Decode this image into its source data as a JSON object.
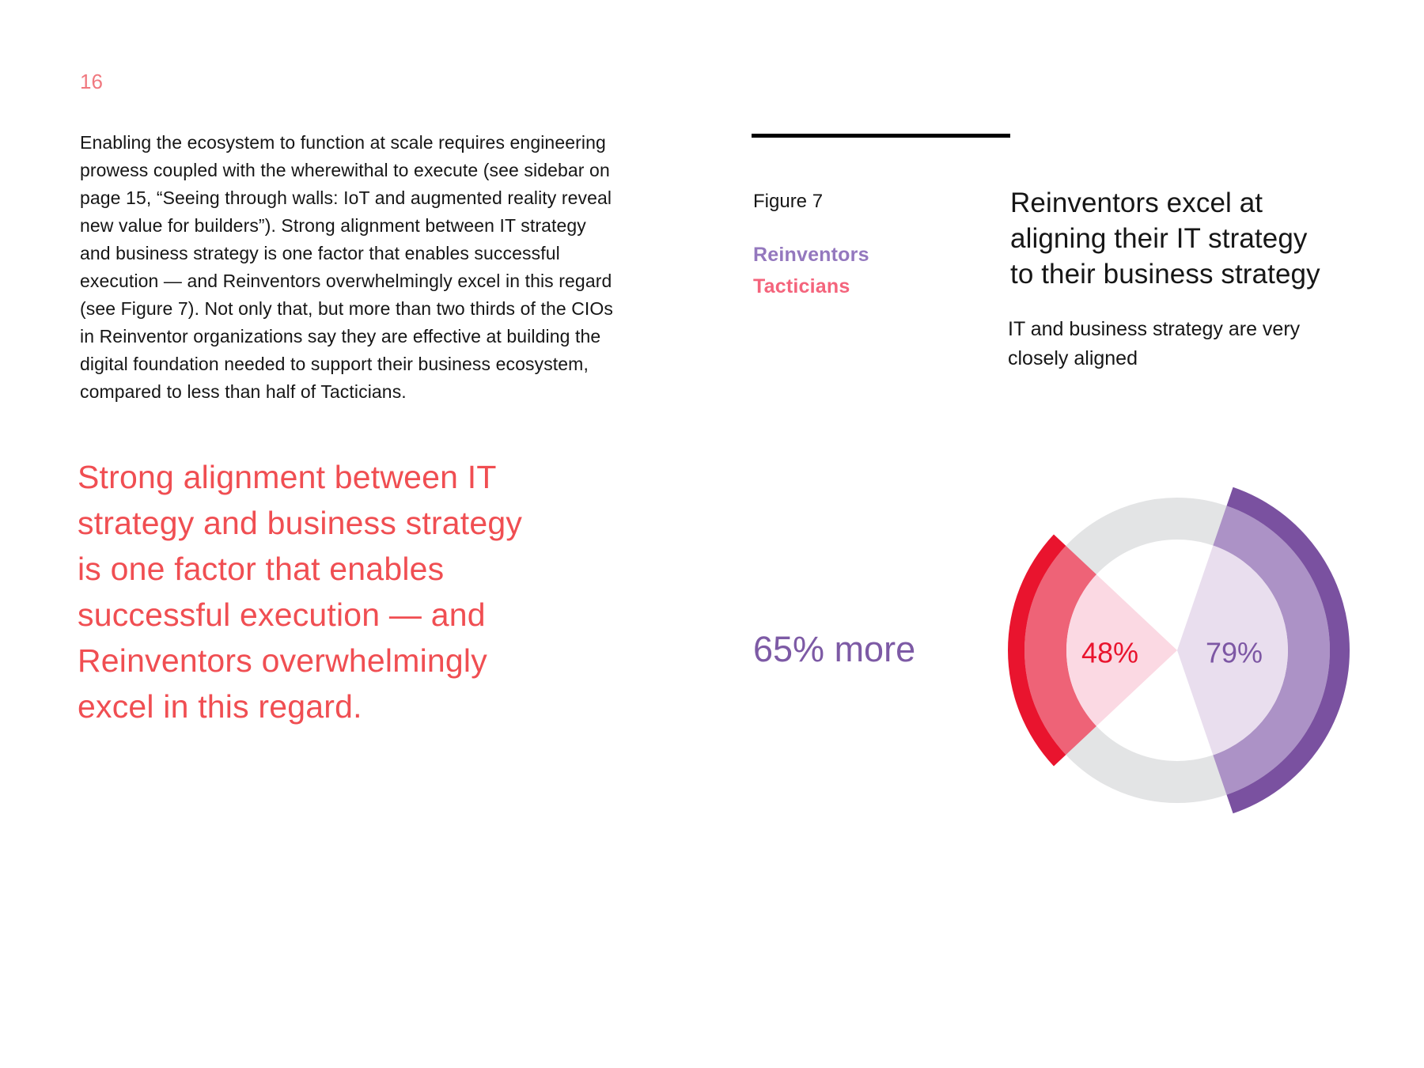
{
  "page": {
    "number": "16"
  },
  "colors": {
    "accent_red": "#F04E52",
    "page_number_red": "#F0787F",
    "text_black": "#161616",
    "rule_black": "#000000",
    "legend_purple": "#9478BE",
    "legend_pink": "#F4647C",
    "annotation_purple": "#7D5AA5"
  },
  "left_column": {
    "paragraph_lines": [
      "Enabling the ecosystem to function at scale requires engineering",
      "prowess coupled with the wherewithal to execute (see sidebar on",
      "page 15, “Seeing through walls: IoT and augmented reality reveal",
      "new value for builders”). Strong alignment between IT strategy",
      "and business strategy is one factor that enables successful",
      "execution — and Reinventors overwhelmingly excel in this regard",
      "(see Figure 7). Not only that, but more than two thirds of the CIOs",
      "in Reinventor organizations say they are effective at building the",
      "digital foundation needed to support their business ecosystem,",
      "compared to less than half of Tacticians."
    ],
    "pull_quote_lines": [
      "Strong alignment between IT",
      "strategy and business strategy",
      "is one factor that enables",
      "successful execution — and",
      "Reinventors overwhelmingly",
      "excel in this regard."
    ]
  },
  "figure": {
    "label": "Figure 7",
    "legend": [
      {
        "label": "Reinventors",
        "color": "#9478BE"
      },
      {
        "label": "Tacticians",
        "color": "#F4647C"
      }
    ],
    "title_lines": [
      "Reinventors excel at",
      "aligning their IT strategy",
      "to their business strategy"
    ],
    "subtitle_lines": [
      "IT and business strategy are very",
      "closely aligned"
    ],
    "annotation": "65% more"
  },
  "chart_data": {
    "type": "radial_wedge_donut",
    "title": "Reinventors excel at aligning their IT strategy to their business strategy",
    "subtitle": "IT and business strategy are very closely aligned",
    "annotation": "65% more",
    "angular_scale": "wedge angle = value% of 180 degrees",
    "base_ring_color": "#E3E4E5",
    "series": [
      {
        "name": "Reinventors",
        "value": 79,
        "label": "79%",
        "side": "right",
        "sector_color": "#E9DEEE",
        "ring_color": "#AC92C6",
        "arc_color": "#7A51A0",
        "label_color": "#7D57A4"
      },
      {
        "name": "Tacticians",
        "value": 48,
        "label": "48%",
        "side": "left",
        "sector_color": "#FBD9E3",
        "ring_color": "#EE6377",
        "arc_color": "#E9142E",
        "label_color": "#E9142E"
      }
    ]
  }
}
